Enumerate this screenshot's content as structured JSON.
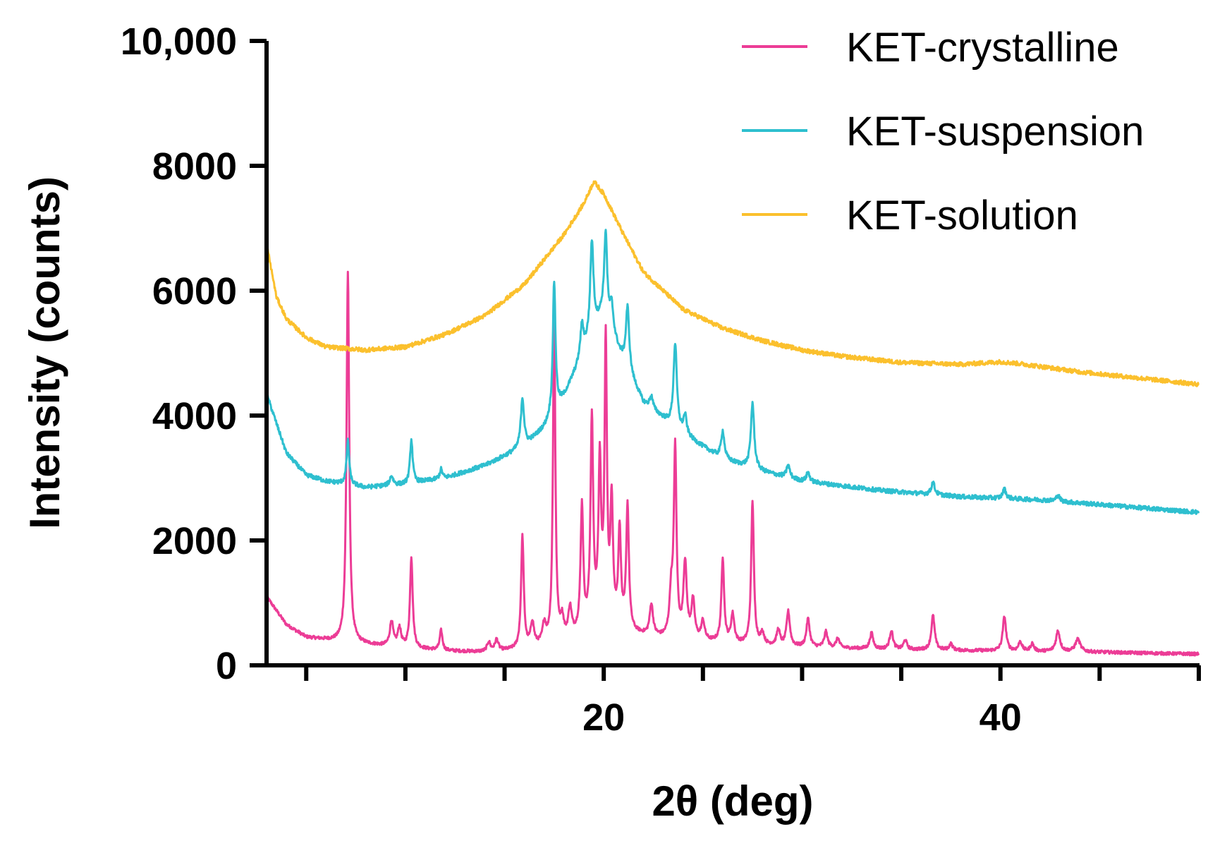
{
  "chart_data": {
    "type": "line",
    "title": "",
    "xlabel": "2θ (deg)",
    "ylabel": "Intensity (counts)",
    "xlim": [
      3,
      50
    ],
    "ylim": [
      0,
      10000
    ],
    "x_ticks": [
      20,
      40
    ],
    "x_tick_labels": [
      "20",
      "40"
    ],
    "x_minor_ticks": [
      5,
      10,
      15,
      25,
      30,
      35,
      45,
      50
    ],
    "y_ticks": [
      0,
      2000,
      4000,
      6000,
      8000,
      10000
    ],
    "y_tick_labels": [
      "0",
      "2000",
      "4000",
      "6000",
      "8000",
      "10,000"
    ],
    "grid": false,
    "legend_position": "top-right",
    "series": [
      {
        "name": "KET-crystalline",
        "color": "#ec3c96",
        "baseline": [
          [
            3,
            1100
          ],
          [
            4,
            650
          ],
          [
            5,
            450
          ],
          [
            7,
            360
          ],
          [
            10,
            280
          ],
          [
            12,
            230
          ],
          [
            14,
            210
          ],
          [
            16,
            250
          ],
          [
            18,
            380
          ],
          [
            19,
            500
          ],
          [
            20,
            650
          ],
          [
            21,
            520
          ],
          [
            23,
            420
          ],
          [
            25,
            380
          ],
          [
            27,
            330
          ],
          [
            30,
            290
          ],
          [
            35,
            250
          ],
          [
            40,
            230
          ],
          [
            45,
            210
          ],
          [
            50,
            180
          ]
        ],
        "peaks": [
          [
            7.1,
            5950,
            0.08
          ],
          [
            9.3,
            400,
            0.1
          ],
          [
            9.7,
            300,
            0.1
          ],
          [
            10.3,
            1450,
            0.08
          ],
          [
            11.8,
            320,
            0.08
          ],
          [
            14.2,
            150,
            0.1
          ],
          [
            14.6,
            180,
            0.1
          ],
          [
            15.9,
            1800,
            0.08
          ],
          [
            16.4,
            380,
            0.1
          ],
          [
            17.0,
            300,
            0.1
          ],
          [
            17.5,
            5300,
            0.07
          ],
          [
            17.9,
            300,
            0.1
          ],
          [
            18.3,
            450,
            0.1
          ],
          [
            18.9,
            2000,
            0.08
          ],
          [
            19.4,
            3300,
            0.08
          ],
          [
            19.8,
            2500,
            0.08
          ],
          [
            20.1,
            4450,
            0.07
          ],
          [
            20.4,
            1900,
            0.08
          ],
          [
            20.8,
            1550,
            0.08
          ],
          [
            21.2,
            2000,
            0.08
          ],
          [
            22.4,
            500,
            0.1
          ],
          [
            23.4,
            650,
            0.1
          ],
          [
            23.6,
            3000,
            0.08
          ],
          [
            24.1,
            1200,
            0.1
          ],
          [
            24.5,
            600,
            0.1
          ],
          [
            25.0,
            300,
            0.1
          ],
          [
            26.0,
            1350,
            0.08
          ],
          [
            26.5,
            450,
            0.1
          ],
          [
            27.5,
            2300,
            0.08
          ],
          [
            28.0,
            180,
            0.1
          ],
          [
            28.8,
            250,
            0.1
          ],
          [
            29.3,
            550,
            0.1
          ],
          [
            30.3,
            450,
            0.1
          ],
          [
            31.2,
            250,
            0.1
          ],
          [
            31.8,
            150,
            0.1
          ],
          [
            33.5,
            250,
            0.1
          ],
          [
            34.5,
            300,
            0.1
          ],
          [
            35.2,
            150,
            0.1
          ],
          [
            36.6,
            550,
            0.1
          ],
          [
            37.5,
            100,
            0.1
          ],
          [
            40.2,
            550,
            0.1
          ],
          [
            41.0,
            150,
            0.1
          ],
          [
            41.6,
            120,
            0.1
          ],
          [
            42.9,
            330,
            0.12
          ],
          [
            43.9,
            200,
            0.15
          ]
        ],
        "noise": 25
      },
      {
        "name": "KET-suspension",
        "color": "#2ebfcf",
        "baseline": [
          [
            3,
            4350
          ],
          [
            4,
            3400
          ],
          [
            5,
            3050
          ],
          [
            6,
            2950
          ],
          [
            8,
            2850
          ],
          [
            10,
            2900
          ],
          [
            12,
            3000
          ],
          [
            14,
            3200
          ],
          [
            16,
            3500
          ],
          [
            17,
            3800
          ],
          [
            18,
            4300
          ],
          [
            19,
            5000
          ],
          [
            20,
            5700
          ],
          [
            20.8,
            5000
          ],
          [
            22,
            4200
          ],
          [
            24,
            3700
          ],
          [
            26,
            3300
          ],
          [
            28,
            3100
          ],
          [
            30,
            2950
          ],
          [
            34,
            2800
          ],
          [
            38,
            2700
          ],
          [
            42,
            2650
          ],
          [
            46,
            2550
          ],
          [
            50,
            2450
          ]
        ],
        "peaks": [
          [
            7.1,
            700,
            0.08
          ],
          [
            9.3,
            150,
            0.1
          ],
          [
            10.3,
            700,
            0.08
          ],
          [
            11.8,
            150,
            0.08
          ],
          [
            15.9,
            800,
            0.1
          ],
          [
            17.5,
            2100,
            0.08
          ],
          [
            18.9,
            500,
            0.1
          ],
          [
            19.4,
            1500,
            0.1
          ],
          [
            20.1,
            1300,
            0.08
          ],
          [
            20.4,
            400,
            0.1
          ],
          [
            21.2,
            1000,
            0.1
          ],
          [
            22.4,
            200,
            0.1
          ],
          [
            23.6,
            1350,
            0.1
          ],
          [
            24.1,
            300,
            0.1
          ],
          [
            26.0,
            450,
            0.1
          ],
          [
            27.5,
            1050,
            0.1
          ],
          [
            29.3,
            200,
            0.1
          ],
          [
            30.3,
            150,
            0.1
          ],
          [
            36.6,
            200,
            0.1
          ],
          [
            40.2,
            150,
            0.1
          ],
          [
            42.9,
            100,
            0.1
          ]
        ],
        "noise": 35
      },
      {
        "name": "KET-solution",
        "color": "#fbc02d",
        "baseline": [
          [
            3,
            6750
          ],
          [
            3.5,
            5900
          ],
          [
            4,
            5550
          ],
          [
            5,
            5250
          ],
          [
            6,
            5100
          ],
          [
            8,
            5050
          ],
          [
            10,
            5100
          ],
          [
            12,
            5300
          ],
          [
            14,
            5600
          ],
          [
            16,
            6100
          ],
          [
            18,
            6900
          ],
          [
            19,
            7400
          ],
          [
            19.5,
            7750
          ],
          [
            20,
            7550
          ],
          [
            21,
            6900
          ],
          [
            22,
            6300
          ],
          [
            24,
            5700
          ],
          [
            26,
            5400
          ],
          [
            28,
            5200
          ],
          [
            30,
            5050
          ],
          [
            32,
            4950
          ],
          [
            35,
            4850
          ],
          [
            38,
            4820
          ],
          [
            40,
            4860
          ],
          [
            41,
            4830
          ],
          [
            44,
            4700
          ],
          [
            47,
            4600
          ],
          [
            50,
            4500
          ]
        ],
        "peaks": [],
        "noise": 35
      }
    ]
  }
}
